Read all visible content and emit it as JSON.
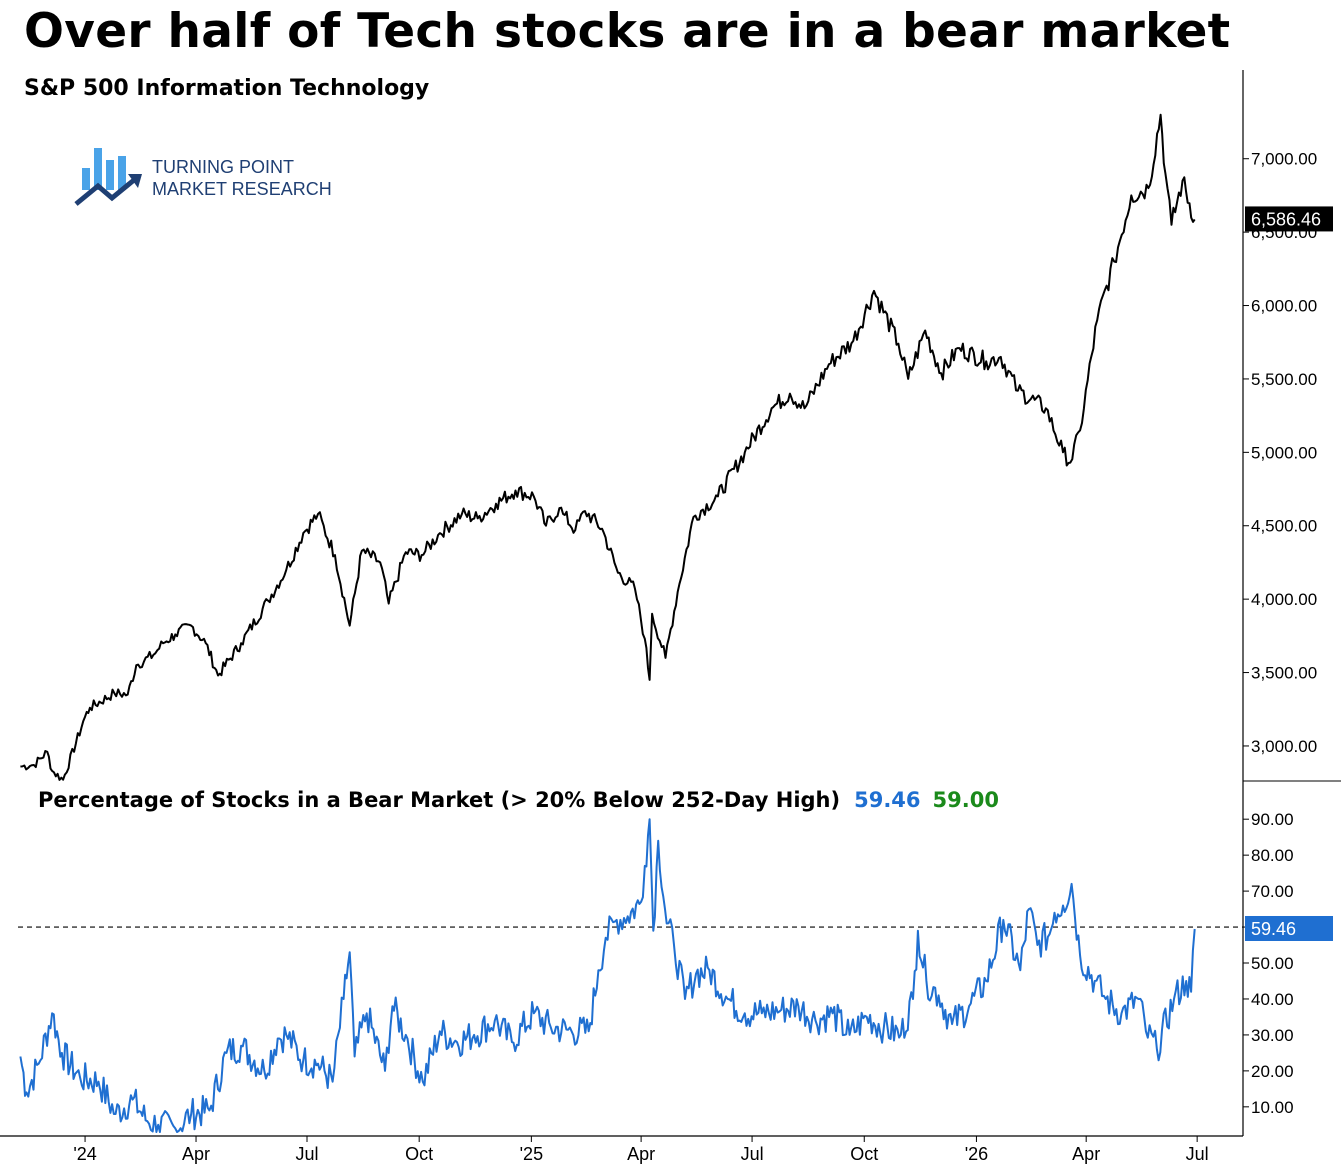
{
  "title": "Over half of Tech stocks are in a bear market",
  "logo": {
    "line1": "TURNING POINT",
    "line2": "MARKET RESEARCH",
    "color": "#1f5fbf"
  },
  "colors": {
    "price_line": "#000000",
    "pct_line": "#1f6fd1",
    "pct_badge": "#1f6fd1",
    "value_green": "#1b8a1b"
  },
  "chart_data": [
    {
      "type": "line",
      "title": "S&P 500 Information Technology",
      "ylim": [
        2700,
        7400
      ],
      "yticks": [
        "7,000.00",
        "6,500.00",
        "6,000.00",
        "5,500.00",
        "5,000.00",
        "4,500.00",
        "4,000.00",
        "3,500.00",
        "3,000.00"
      ],
      "last_value_label": "6,586.46",
      "last_value": 6586.46,
      "series": [
        {
          "x": [
            "2023-11-09",
            "2023-11-20",
            "2023-12-01",
            "2023-12-05",
            "2023-12-14",
            "2024-01-01",
            "2024-01-05",
            "2024-01-25",
            "2024-02-05",
            "2024-02-12",
            "2024-02-26",
            "2024-03-05",
            "2024-03-15",
            "2024-03-28",
            "2024-04-09",
            "2024-04-19",
            "2024-05-08",
            "2024-05-30",
            "2024-06-14",
            "2024-06-28",
            "2024-07-10",
            "2024-07-24",
            "2024-08-05",
            "2024-08-15",
            "2024-08-30",
            "2024-09-06",
            "2024-09-20",
            "2024-10-03",
            "2024-10-18",
            "2024-11-05",
            "2024-11-18",
            "2024-12-03",
            "2024-12-19",
            "2025-01-03",
            "2025-01-13",
            "2025-01-24",
            "2025-01-27",
            "2025-02-06",
            "2025-02-14",
            "2025-02-28",
            "2025-03-13",
            "2025-03-27",
            "2025-04-04",
            "2025-04-08",
            "2025-04-10",
            "2025-04-21",
            "2025-05-01",
            "2025-05-14",
            "2025-06-03",
            "2025-06-25",
            "2025-07-17",
            "2025-08-01",
            "2025-08-13",
            "2025-09-02",
            "2025-09-22",
            "2025-10-09",
            "2025-10-29",
            "2025-11-06",
            "2025-11-20",
            "2025-12-03",
            "2025-12-18",
            "2026-01-09",
            "2026-01-21",
            "2026-02-04",
            "2026-02-27",
            "2026-03-13",
            "2026-03-19",
            "2026-03-27",
            "2026-04-10",
            "2026-04-24",
            "2026-05-08",
            "2026-05-22",
            "2026-06-01",
            "2026-06-05",
            "2026-06-10",
            "2026-06-19",
            "2026-06-29"
          ],
          "values": [
            2860,
            2870,
            2960,
            2830,
            2770,
            3200,
            3260,
            3360,
            3350,
            3550,
            3620,
            3700,
            3760,
            3820,
            3700,
            3480,
            3700,
            3990,
            4200,
            4450,
            4580,
            4300,
            3820,
            4330,
            4250,
            3970,
            4320,
            4300,
            4450,
            4580,
            4550,
            4650,
            4740,
            4700,
            4500,
            4620,
            4580,
            4470,
            4600,
            4480,
            4180,
            4070,
            3730,
            3450,
            3900,
            3600,
            4050,
            4560,
            4700,
            5000,
            5300,
            5400,
            5300,
            5600,
            5760,
            6100,
            5740,
            5500,
            5830,
            5540,
            5710,
            5620,
            5650,
            5420,
            5300,
            5000,
            4930,
            5150,
            5900,
            6300,
            6750,
            6800,
            7300,
            6900,
            6550,
            6850,
            6586.46
          ]
        }
      ]
    },
    {
      "type": "line",
      "title": "Percentage of Stocks in a Bear Market (> 20% Below 252-Day High)",
      "value_labels": [
        "59.46",
        "59.00"
      ],
      "ylim": [
        3,
        92
      ],
      "yticks": [
        "90.00",
        "80.00",
        "70.00",
        "60.00",
        "50.00",
        "40.00",
        "30.00",
        "20.00",
        "10.00"
      ],
      "last_value_label": "59.46",
      "reference_line": 60,
      "series": [
        {
          "x": [
            "2023-11-09",
            "2023-11-14",
            "2023-11-24",
            "2023-12-05",
            "2023-12-13",
            "2023-12-28",
            "2024-01-12",
            "2024-01-26",
            "2024-02-09",
            "2024-02-21",
            "2024-03-01",
            "2024-03-15",
            "2024-03-28",
            "2024-04-12",
            "2024-04-26",
            "2024-05-08",
            "2024-05-27",
            "2024-06-07",
            "2024-06-14",
            "2024-06-28",
            "2024-07-10",
            "2024-07-22",
            "2024-07-31",
            "2024-08-05",
            "2024-08-09",
            "2024-08-19",
            "2024-09-03",
            "2024-09-09",
            "2024-09-20",
            "2024-10-04",
            "2024-10-18",
            "2024-11-01",
            "2024-11-15",
            "2024-12-02",
            "2024-12-16",
            "2025-01-03",
            "2025-01-17",
            "2025-02-03",
            "2025-02-17",
            "2025-02-25",
            "2025-03-03",
            "2025-03-12",
            "2025-03-21",
            "2025-04-01",
            "2025-04-04",
            "2025-04-08",
            "2025-04-11",
            "2025-04-15",
            "2025-04-22",
            "2025-04-28",
            "2025-05-07",
            "2025-05-16",
            "2025-05-27",
            "2025-06-11",
            "2025-06-25",
            "2025-07-09",
            "2025-07-25",
            "2025-08-08",
            "2025-08-22",
            "2025-09-05",
            "2025-09-19",
            "2025-10-03",
            "2025-10-17",
            "2025-10-31",
            "2025-11-10",
            "2025-11-14",
            "2025-11-21",
            "2025-12-01",
            "2025-12-12",
            "2025-12-26",
            "2026-01-09",
            "2026-01-23",
            "2026-02-06",
            "2026-02-13",
            "2026-02-20",
            "2026-03-02",
            "2026-03-06",
            "2026-03-13",
            "2026-03-20",
            "2026-03-27",
            "2026-04-08",
            "2026-04-17",
            "2026-04-30",
            "2026-05-14",
            "2026-05-20",
            "2026-05-29",
            "2026-06-12",
            "2026-06-22",
            "2026-06-26",
            "2026-06-29"
          ],
          "values": [
            24,
            14,
            22,
            36,
            25,
            18,
            17,
            8,
            12,
            6,
            5,
            4,
            8,
            9,
            25,
            27,
            20,
            29,
            30,
            23,
            22,
            17,
            40,
            53,
            24,
            36,
            20,
            38,
            30,
            17,
            31,
            28,
            30,
            34,
            28,
            36,
            32,
            31,
            31,
            48,
            57,
            62,
            63,
            67,
            77,
            90,
            59,
            84,
            61,
            55,
            40,
            47,
            48,
            40,
            36,
            36,
            37,
            38,
            34,
            36,
            30,
            35,
            32,
            30,
            40,
            59,
            45,
            41,
            33,
            38,
            45,
            62,
            48,
            65,
            55,
            58,
            64,
            66,
            72,
            52,
            45,
            40,
            36,
            40,
            31,
            26,
            40,
            45,
            42,
            59.46
          ]
        }
      ]
    }
  ],
  "x_axis": {
    "range": [
      "2023-11-07",
      "2026-07-14"
    ],
    "ticks": [
      {
        "label": "'24",
        "date": "2024-01-01"
      },
      {
        "label": "Apr",
        "date": "2024-04-01"
      },
      {
        "label": "Jul",
        "date": "2024-07-01"
      },
      {
        "label": "Oct",
        "date": "2024-10-01"
      },
      {
        "label": "'25",
        "date": "2025-01-01"
      },
      {
        "label": "Apr",
        "date": "2025-04-01"
      },
      {
        "label": "Jul",
        "date": "2025-07-01"
      },
      {
        "label": "Oct",
        "date": "2025-10-01"
      },
      {
        "label": "'26",
        "date": "2026-01-01"
      },
      {
        "label": "Apr",
        "date": "2026-04-01"
      },
      {
        "label": "Jul",
        "date": "2026-07-01"
      }
    ]
  }
}
